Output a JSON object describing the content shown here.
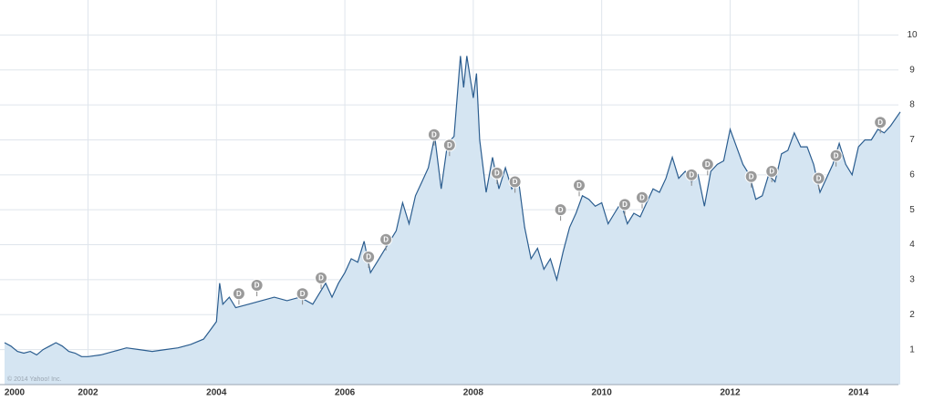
{
  "chart_data": {
    "type": "area",
    "credit": "© 2014 Yahoo! Inc.",
    "line_color": "#2b5d8f",
    "fill_color": "#d5e5f2",
    "grid": true,
    "xlim": [
      2000.7,
      2014.65
    ],
    "xticks": [
      2000,
      2002,
      2004,
      2006,
      2008,
      2010,
      2012,
      2014
    ],
    "ylim": [
      0,
      11
    ],
    "yticks": [
      1,
      2,
      3,
      4,
      5,
      6,
      7,
      8,
      9,
      10
    ],
    "x": [
      2000.7,
      2000.8,
      2000.9,
      2001.0,
      2001.1,
      2001.2,
      2001.3,
      2001.4,
      2001.5,
      2001.6,
      2001.7,
      2001.8,
      2001.9,
      2002.0,
      2002.2,
      2002.4,
      2002.6,
      2002.8,
      2003.0,
      2003.2,
      2003.4,
      2003.6,
      2003.8,
      2003.9,
      2004.0,
      2004.05,
      2004.1,
      2004.2,
      2004.3,
      2004.5,
      2004.7,
      2004.9,
      2005.1,
      2005.3,
      2005.5,
      2005.6,
      2005.7,
      2005.8,
      2005.9,
      2006.0,
      2006.1,
      2006.2,
      2006.3,
      2006.4,
      2006.5,
      2006.6,
      2006.7,
      2006.8,
      2006.9,
      2007.0,
      2007.1,
      2007.2,
      2007.3,
      2007.4,
      2007.5,
      2007.6,
      2007.7,
      2007.8,
      2007.85,
      2007.9,
      2008.0,
      2008.05,
      2008.1,
      2008.2,
      2008.3,
      2008.4,
      2008.5,
      2008.6,
      2008.7,
      2008.8,
      2008.9,
      2009.0,
      2009.1,
      2009.2,
      2009.3,
      2009.4,
      2009.5,
      2009.6,
      2009.7,
      2009.8,
      2009.9,
      2010.0,
      2010.1,
      2010.2,
      2010.3,
      2010.4,
      2010.5,
      2010.6,
      2010.7,
      2010.8,
      2010.9,
      2011.0,
      2011.1,
      2011.2,
      2011.3,
      2011.4,
      2011.5,
      2011.6,
      2011.7,
      2011.8,
      2011.9,
      2012.0,
      2012.1,
      2012.2,
      2012.3,
      2012.4,
      2012.5,
      2012.6,
      2012.7,
      2012.8,
      2012.9,
      2013.0,
      2013.1,
      2013.2,
      2013.3,
      2013.4,
      2013.5,
      2013.6,
      2013.7,
      2013.8,
      2013.9,
      2014.0,
      2014.1,
      2014.2,
      2014.3,
      2014.4,
      2014.5,
      2014.65
    ],
    "values": [
      1.2,
      1.1,
      0.95,
      0.9,
      0.95,
      0.85,
      1.0,
      1.1,
      1.2,
      1.1,
      0.95,
      0.9,
      0.8,
      0.8,
      0.85,
      0.95,
      1.05,
      1.0,
      0.95,
      1.0,
      1.05,
      1.15,
      1.3,
      1.55,
      1.8,
      2.9,
      2.3,
      2.5,
      2.2,
      2.3,
      2.4,
      2.5,
      2.4,
      2.5,
      2.3,
      2.6,
      2.9,
      2.5,
      2.9,
      3.2,
      3.6,
      3.5,
      4.1,
      3.2,
      3.5,
      3.8,
      4.1,
      4.4,
      5.2,
      4.6,
      5.4,
      5.8,
      6.2,
      7.1,
      5.6,
      6.9,
      7.1,
      9.4,
      8.5,
      9.4,
      8.2,
      8.9,
      7.0,
      5.5,
      6.5,
      5.6,
      6.2,
      5.6,
      5.9,
      4.5,
      3.6,
      3.9,
      3.3,
      3.6,
      3.0,
      3.8,
      4.5,
      4.9,
      5.4,
      5.3,
      5.1,
      5.2,
      4.6,
      4.9,
      5.2,
      4.6,
      4.9,
      4.8,
      5.2,
      5.6,
      5.5,
      5.9,
      6.5,
      5.9,
      6.1,
      5.8,
      6.0,
      5.1,
      6.1,
      6.3,
      6.4,
      7.3,
      6.8,
      6.3,
      6.0,
      5.3,
      5.4,
      6.0,
      5.8,
      6.6,
      6.7,
      7.2,
      6.8,
      6.8,
      6.3,
      5.5,
      5.9,
      6.3,
      6.9,
      6.3,
      6.0,
      6.8,
      7.0,
      7.0,
      7.3,
      7.2,
      7.4,
      7.8
    ],
    "markers": {
      "label": "D",
      "color": "#9a9a9a",
      "x": [
        2004.35,
        2004.63,
        2005.34,
        2005.63,
        2006.37,
        2006.64,
        2007.39,
        2007.63,
        2008.37,
        2008.65,
        2009.36,
        2009.65,
        2010.36,
        2010.63,
        2011.4,
        2011.65,
        2012.33,
        2012.65,
        2013.38,
        2013.65,
        2014.34
      ],
      "y": [
        2.6,
        2.84,
        2.6,
        3.05,
        3.65,
        4.15,
        7.15,
        6.85,
        6.05,
        5.8,
        5.0,
        5.7,
        5.15,
        5.35,
        6.0,
        6.3,
        5.95,
        6.1,
        5.9,
        6.55,
        7.5
      ]
    }
  }
}
